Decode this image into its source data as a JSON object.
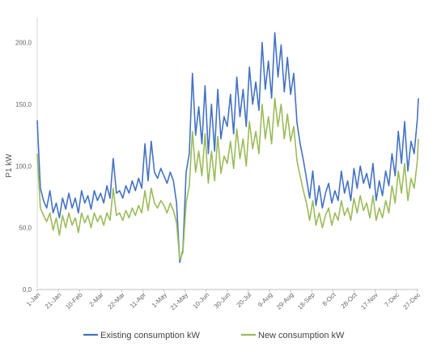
{
  "chart_data": {
    "type": "line",
    "title": "",
    "xlabel": "",
    "ylabel": "P1 kW",
    "ylim": [
      0,
      220
    ],
    "yticks": [
      "0,0",
      "50,0",
      "100,0",
      "150,0",
      "200,0"
    ],
    "ytick_values": [
      0,
      50,
      100,
      150,
      200
    ],
    "x_range": [
      0,
      361
    ],
    "xticks": [
      {
        "label": "1-Jan",
        "day": 0
      },
      {
        "label": "21-Jan",
        "day": 20
      },
      {
        "label": "10-Feb",
        "day": 40
      },
      {
        "label": "2-Mar",
        "day": 60
      },
      {
        "label": "22-Mar",
        "day": 80
      },
      {
        "label": "11-Apr",
        "day": 100
      },
      {
        "label": "1-May",
        "day": 120
      },
      {
        "label": "21-May",
        "day": 140
      },
      {
        "label": "10-Jun",
        "day": 160
      },
      {
        "label": "30-Jun",
        "day": 180
      },
      {
        "label": "20-Jul",
        "day": 200
      },
      {
        "label": "9-Aug",
        "day": 220
      },
      {
        "label": "29-Aug",
        "day": 240
      },
      {
        "label": "18-Sep",
        "day": 260
      },
      {
        "label": "8-Oct",
        "day": 280
      },
      {
        "label": "28-Oct",
        "day": 300
      },
      {
        "label": "17-Nov",
        "day": 320
      },
      {
        "label": "7-Dec",
        "day": 340
      },
      {
        "label": "27-Dec",
        "day": 360
      }
    ],
    "grid": false,
    "legend_position": "bottom",
    "series": [
      {
        "name": "Existing consumption kW",
        "color": "#4472C4",
        "x": [
          0,
          3,
          6,
          9,
          12,
          15,
          18,
          21,
          24,
          27,
          30,
          33,
          36,
          39,
          42,
          45,
          48,
          51,
          54,
          57,
          60,
          63,
          66,
          69,
          72,
          75,
          78,
          81,
          84,
          87,
          90,
          93,
          96,
          99,
          102,
          105,
          108,
          111,
          114,
          117,
          120,
          123,
          126,
          129,
          132,
          135,
          138,
          141,
          144,
          147,
          150,
          153,
          156,
          159,
          162,
          165,
          168,
          171,
          174,
          177,
          180,
          183,
          186,
          189,
          192,
          195,
          198,
          201,
          204,
          207,
          210,
          213,
          216,
          219,
          222,
          225,
          228,
          231,
          234,
          237,
          240,
          243,
          246,
          249,
          252,
          255,
          258,
          261,
          264,
          267,
          270,
          273,
          276,
          279,
          282,
          285,
          288,
          291,
          294,
          297,
          300,
          303,
          306,
          309,
          312,
          315,
          318,
          321,
          324,
          327,
          330,
          333,
          336,
          339,
          342,
          345,
          348,
          351,
          354,
          357,
          360,
          361
        ],
        "y": [
          137,
          82,
          72,
          66,
          80,
          62,
          70,
          58,
          74,
          65,
          78,
          66,
          74,
          62,
          80,
          70,
          76,
          65,
          80,
          72,
          78,
          70,
          84,
          74,
          106,
          78,
          80,
          74,
          84,
          78,
          88,
          80,
          90,
          82,
          118,
          88,
          120,
          95,
          90,
          98,
          92,
          86,
          95,
          88,
          70,
          22,
          32,
          95,
          110,
          175,
          125,
          148,
          118,
          165,
          110,
          150,
          112,
          162,
          122,
          140,
          132,
          158,
          126,
          172,
          140,
          162,
          132,
          180,
          150,
          168,
          145,
          200,
          162,
          185,
          155,
          208,
          172,
          198,
          160,
          188,
          158,
          175,
          135,
          118,
          105,
          90,
          74,
          96,
          68,
          84,
          66,
          78,
          86,
          70,
          80,
          72,
          96,
          78,
          88,
          72,
          98,
          82,
          100,
          86,
          94,
          82,
          102,
          72,
          88,
          76,
          96,
          84,
          110,
          92,
          128,
          102,
          136,
          96,
          120,
          110,
          138,
          155
        ]
      },
      {
        "name": "New consumption kW",
        "color": "#9BBB59",
        "x": [
          0,
          3,
          6,
          9,
          12,
          15,
          18,
          21,
          24,
          27,
          30,
          33,
          36,
          39,
          42,
          45,
          48,
          51,
          54,
          57,
          60,
          63,
          66,
          69,
          72,
          75,
          78,
          81,
          84,
          87,
          90,
          93,
          96,
          99,
          102,
          105,
          108,
          111,
          114,
          117,
          120,
          123,
          126,
          129,
          132,
          135,
          138,
          141,
          144,
          147,
          150,
          153,
          156,
          159,
          162,
          165,
          168,
          171,
          174,
          177,
          180,
          183,
          186,
          189,
          192,
          195,
          198,
          201,
          204,
          207,
          210,
          213,
          216,
          219,
          222,
          225,
          228,
          231,
          234,
          237,
          240,
          243,
          246,
          249,
          252,
          255,
          258,
          261,
          264,
          267,
          270,
          273,
          276,
          279,
          282,
          285,
          288,
          291,
          294,
          297,
          300,
          303,
          306,
          309,
          312,
          315,
          318,
          321,
          324,
          327,
          330,
          333,
          336,
          339,
          342,
          345,
          348,
          351,
          354,
          357,
          360,
          361
        ],
        "y": [
          110,
          66,
          60,
          55,
          62,
          48,
          58,
          44,
          60,
          50,
          62,
          52,
          58,
          46,
          62,
          54,
          60,
          50,
          62,
          55,
          60,
          52,
          62,
          56,
          82,
          60,
          62,
          56,
          64,
          58,
          66,
          60,
          68,
          62,
          80,
          64,
          82,
          70,
          66,
          72,
          68,
          62,
          70,
          64,
          54,
          24,
          30,
          70,
          84,
          128,
          95,
          112,
          92,
          126,
          86,
          112,
          88,
          124,
          94,
          108,
          102,
          120,
          98,
          130,
          106,
          122,
          100,
          136,
          114,
          128,
          110,
          150,
          122,
          140,
          118,
          155,
          132,
          150,
          122,
          142,
          120,
          132,
          104,
          92,
          80,
          70,
          56,
          72,
          52,
          62,
          50,
          60,
          66,
          52,
          62,
          56,
          72,
          60,
          66,
          56,
          74,
          62,
          76,
          64,
          70,
          58,
          76,
          56,
          66,
          58,
          72,
          62,
          84,
          70,
          96,
          78,
          102,
          72,
          90,
          82,
          104,
          122
        ]
      }
    ]
  }
}
